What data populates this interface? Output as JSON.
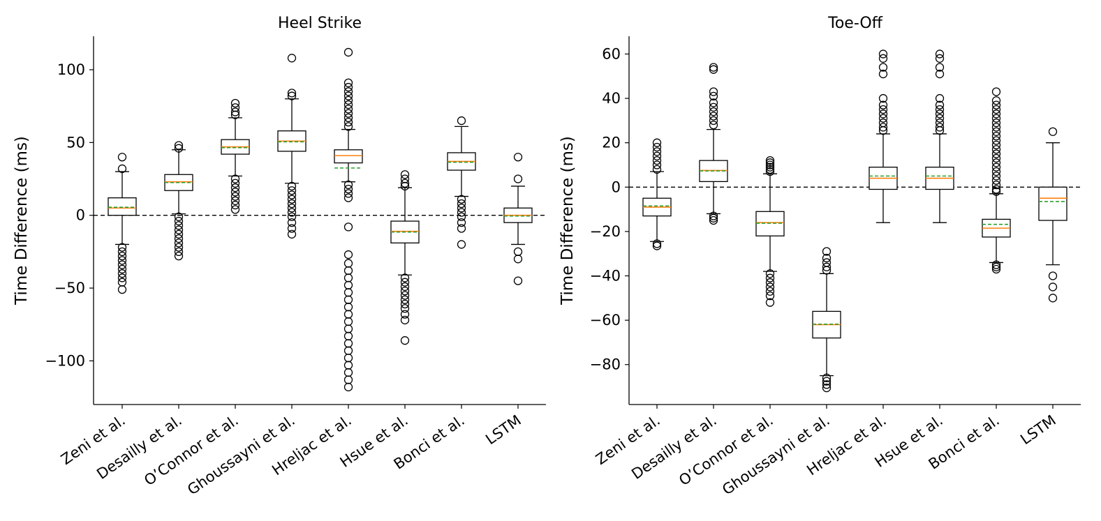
{
  "chart_data": [
    {
      "type": "box",
      "title": "Heel Strike",
      "ylabel": "Time Difference (ms)",
      "xlabel": "",
      "ylim": [
        -130,
        123
      ],
      "yticks": [
        -100,
        -50,
        0,
        50,
        100
      ],
      "ytick_labels": [
        "−100",
        "−50",
        "0",
        "50",
        "100"
      ],
      "reference_line": 0,
      "categories": [
        "Zeni et al.",
        "Desailly et al.",
        "O’Connor et al.",
        "Ghoussayni et al.",
        "Hreljac et al.",
        "Hsue et al.",
        "Bonci et al.",
        "LSTM"
      ],
      "boxes": [
        {
          "q1": 0,
          "median": 5,
          "q3": 12,
          "mean": 5.5,
          "whisker_low": -20,
          "whisker_high": 30,
          "outliers": [
            40,
            32,
            -22,
            -25,
            -28,
            -31,
            -34,
            -37,
            -40,
            -43,
            -46,
            -51
          ]
        },
        {
          "q1": 17,
          "median": 23,
          "q3": 28,
          "mean": 22.5,
          "whisker_low": 1,
          "whisker_high": 45,
          "outliers": [
            48,
            46,
            -1,
            -4,
            -7,
            -10,
            -13,
            -16,
            -19,
            -22,
            -25,
            -28
          ]
        },
        {
          "q1": 42,
          "median": 47,
          "q3": 52,
          "mean": 46.5,
          "whisker_low": 27,
          "whisker_high": 67,
          "outliers": [
            77,
            74,
            71,
            69,
            25,
            22,
            19,
            16,
            13,
            10,
            7,
            4
          ]
        },
        {
          "q1": 44,
          "median": 51,
          "q3": 58,
          "mean": 50.5,
          "whisker_low": 22,
          "whisker_high": 80,
          "outliers": [
            108,
            84,
            82,
            20,
            17,
            14,
            11,
            8,
            5,
            2,
            -1,
            -5,
            -9,
            -13
          ]
        },
        {
          "q1": 36,
          "median": 41,
          "q3": 45,
          "mean": 32.5,
          "whisker_low": 23,
          "whisker_high": 59,
          "outliers": [
            112,
            91,
            88,
            85,
            82,
            79,
            76,
            73,
            70,
            67,
            64,
            61,
            21,
            18,
            15,
            12,
            -8,
            -27,
            -33,
            -38,
            -43,
            -48,
            -53,
            -58,
            -63,
            -68,
            -73,
            -78,
            -83,
            -88,
            -93,
            -98,
            -103,
            -108,
            -113,
            -118
          ]
        },
        {
          "q1": -19,
          "median": -11,
          "q3": -4,
          "mean": -11.5,
          "whisker_low": -41,
          "whisker_high": 19,
          "outliers": [
            28,
            25,
            22,
            20,
            -43,
            -46,
            -49,
            -52,
            -55,
            -58,
            -61,
            -64,
            -68,
            -72,
            -86
          ]
        },
        {
          "q1": 31,
          "median": 37,
          "q3": 43,
          "mean": 36.5,
          "whisker_low": 13,
          "whisker_high": 61,
          "outliers": [
            65,
            11,
            8,
            5,
            2,
            -1,
            -5,
            -9,
            -20
          ]
        },
        {
          "q1": -5,
          "median": 0,
          "q3": 5,
          "mean": -0.5,
          "whisker_low": -20,
          "whisker_high": 20,
          "outliers": [
            40,
            25,
            -25,
            -30,
            -45
          ]
        }
      ]
    },
    {
      "type": "box",
      "title": "Toe-Off",
      "ylabel": "Time Difference (ms)",
      "xlabel": "",
      "ylim": [
        -98,
        68
      ],
      "yticks": [
        -80,
        -60,
        -40,
        -20,
        0,
        20,
        40,
        60
      ],
      "ytick_labels": [
        "−80",
        "−60",
        "−40",
        "−20",
        "0",
        "20",
        "40",
        "60"
      ],
      "reference_line": 0,
      "categories": [
        "Zeni et al.",
        "Desailly et al.",
        "O’Connor et al.",
        "Ghoussayni et al.",
        "Hreljac et al.",
        "Hsue et al.",
        "Bonci et al.",
        "LSTM"
      ],
      "boxes": [
        {
          "q1": -13,
          "median": -9,
          "q3": -5,
          "mean": -8.5,
          "whisker_low": -24.5,
          "whisker_high": 7,
          "outliers": [
            20,
            18,
            16,
            14,
            12,
            10,
            8,
            -25.5,
            -26.5
          ]
        },
        {
          "q1": 2.5,
          "median": 7.5,
          "q3": 12,
          "mean": 7.3,
          "whisker_low": -12,
          "whisker_high": 26,
          "outliers": [
            54,
            53,
            43,
            41,
            38,
            36,
            34,
            32,
            30,
            28,
            -13,
            -14,
            -15
          ]
        },
        {
          "q1": -22,
          "median": -16,
          "q3": -11,
          "mean": -16.3,
          "whisker_low": -38,
          "whisker_high": 6,
          "outliers": [
            12,
            11,
            10,
            9,
            8,
            7,
            -39,
            -41,
            -43,
            -45,
            -47,
            -49,
            -52
          ]
        },
        {
          "q1": -68,
          "median": -62,
          "q3": -56,
          "mean": -61.8,
          "whisker_low": -85,
          "whisker_high": -39,
          "outliers": [
            -29,
            -32,
            -34,
            -36,
            -37.5,
            -86,
            -87.5,
            -89,
            -90.5
          ]
        },
        {
          "q1": -1,
          "median": 4,
          "q3": 9,
          "mean": 5,
          "whisker_low": -16,
          "whisker_high": 24,
          "outliers": [
            60,
            58,
            54,
            51,
            40,
            37,
            35,
            33,
            31,
            29,
            27,
            25.5
          ]
        },
        {
          "q1": -1,
          "median": 4,
          "q3": 9,
          "mean": 5,
          "whisker_low": -16,
          "whisker_high": 24,
          "outliers": [
            60,
            58,
            54,
            51,
            40,
            37,
            35,
            33,
            31,
            29,
            27,
            25.5
          ]
        },
        {
          "q1": -22.5,
          "median": -18.5,
          "q3": -14.5,
          "mean": -16.8,
          "whisker_low": -34,
          "whisker_high": -3,
          "outliers": [
            43,
            39,
            37,
            35,
            33,
            31,
            29,
            27,
            25,
            23,
            21,
            19,
            17,
            15,
            13,
            11,
            9,
            7,
            5,
            3,
            1,
            -1,
            -2,
            -35,
            -36,
            -37
          ]
        },
        {
          "q1": -15,
          "median": -5,
          "q3": 0,
          "mean": -6.5,
          "whisker_low": -35,
          "whisker_high": 20,
          "outliers": [
            25,
            -40,
            -45,
            -50
          ]
        }
      ]
    }
  ]
}
